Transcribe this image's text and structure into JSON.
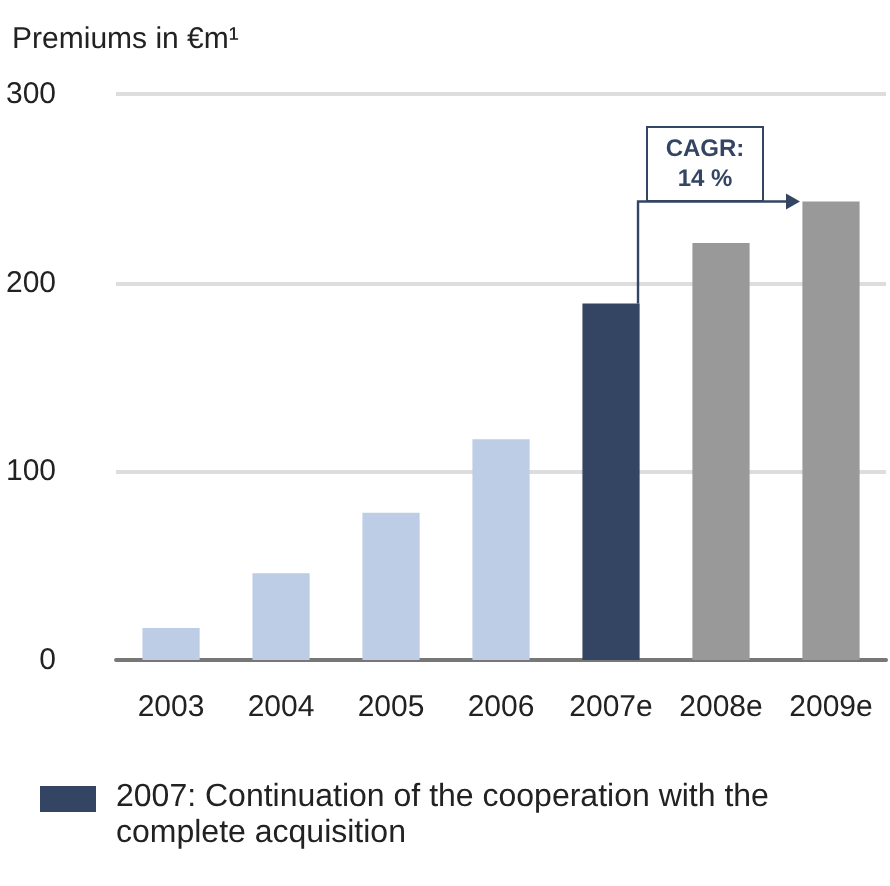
{
  "chart_data": {
    "type": "bar",
    "ylabel": "Premiums in €m¹",
    "categories": [
      "2003",
      "2004",
      "2005",
      "2006",
      "2007e",
      "2008e",
      "2009e"
    ],
    "values": [
      17,
      46,
      78,
      117,
      189,
      221,
      243
    ],
    "colors": [
      "#bccde5",
      "#bccde5",
      "#bccde5",
      "#bccde5",
      "#344563",
      "#999999",
      "#999999"
    ],
    "ylim": [
      0,
      300
    ],
    "yticks": [
      0,
      100,
      200,
      300
    ],
    "grid": "y",
    "annotations": [
      "CAGR:\n14 %",
      "2007: Continuation of the cooperation with the complete acquisition"
    ]
  }
}
